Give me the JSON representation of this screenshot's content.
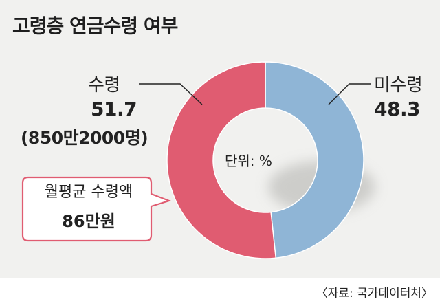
{
  "chart_data": {
    "type": "pie",
    "title": "고령층 연금수령 여부",
    "unit_label": "단위: %",
    "slices": [
      {
        "name": "미수령",
        "value": 48.3,
        "value_label": "48.3",
        "color": "#8fb5d6"
      },
      {
        "name": "수령",
        "value": 51.7,
        "value_label": "51.7",
        "extra": "(850만2000명)",
        "color": "#e05c71"
      }
    ]
  },
  "callout": {
    "line1": "월평균 수령액",
    "line2": "86만원"
  },
  "source": "〈자료: 국가데이터처〉"
}
